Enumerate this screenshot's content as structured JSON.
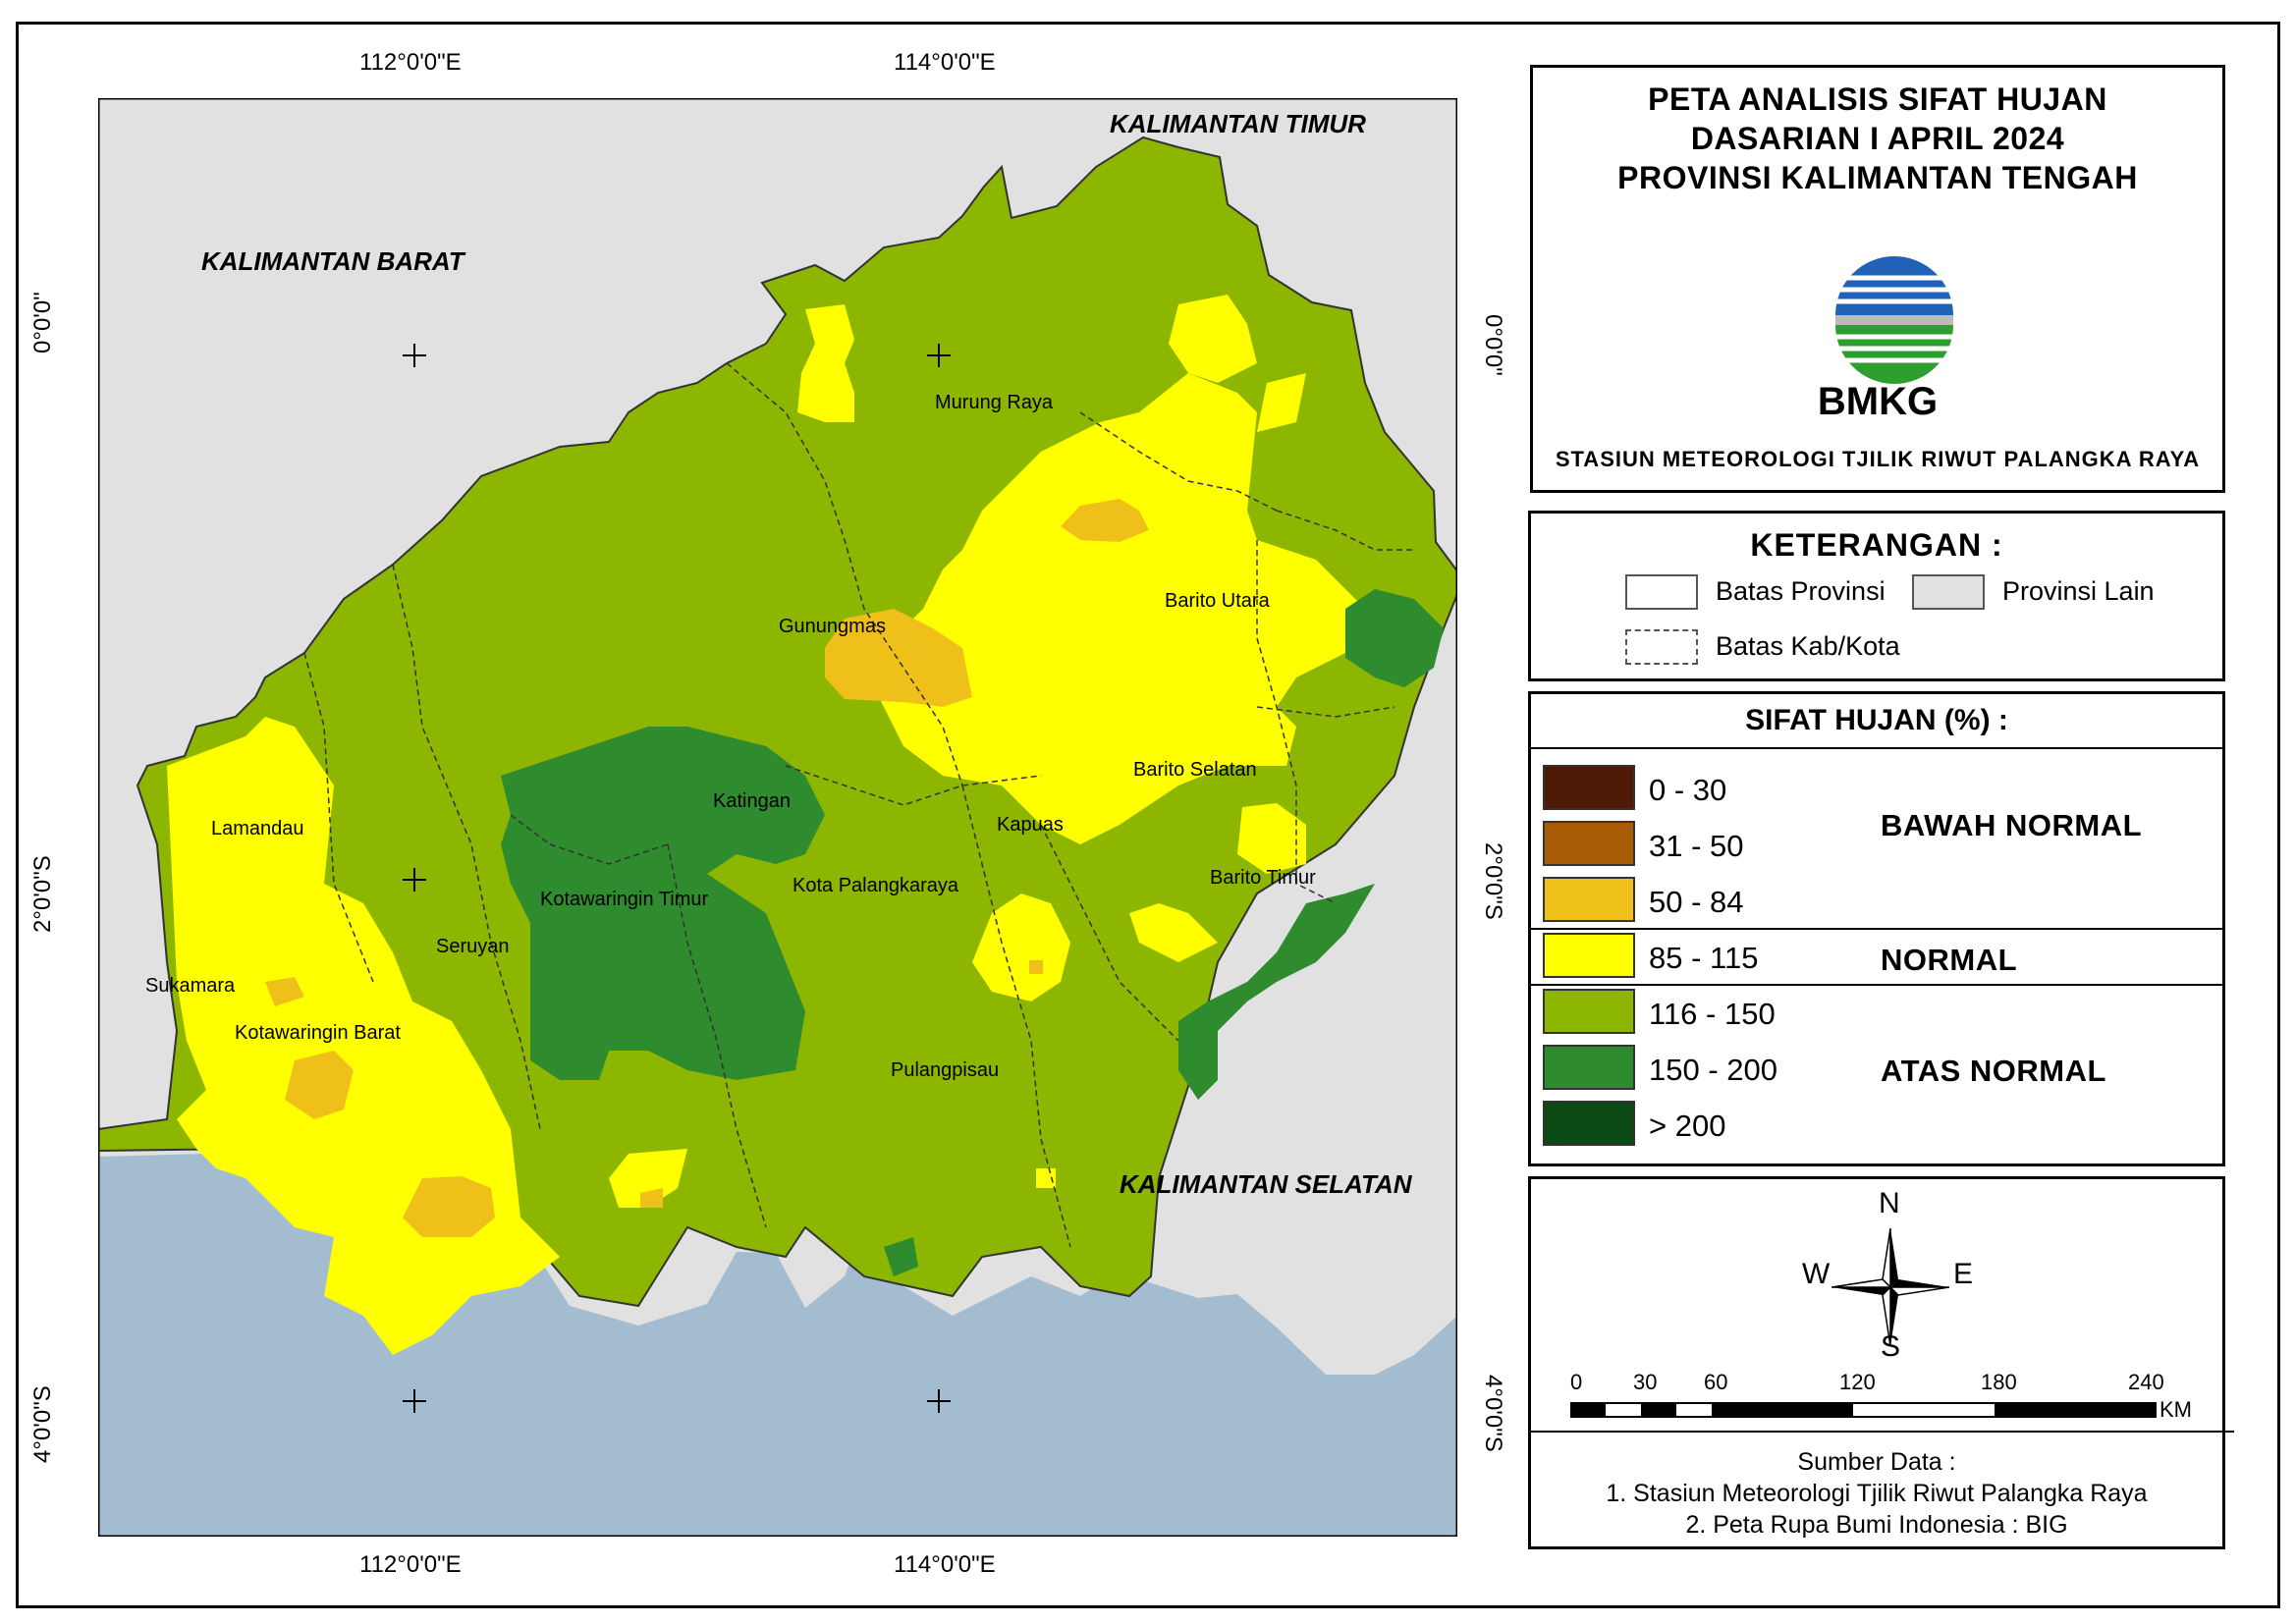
{
  "map": {
    "coordinate_labels": {
      "top": [
        "112°0'0\"E",
        "114°0'0\"E"
      ],
      "bottom": [
        "112°0'0\"E",
        "114°0'0\"E"
      ],
      "left": [
        "0°0'0\"",
        "2°0'0\"S",
        "4°0'0\"S"
      ],
      "right": [
        "0°0'0\"",
        "2°0'0\"S",
        "4°0'0\"S"
      ]
    },
    "neighbor_provinces": [
      "KALIMANTAN TIMUR",
      "KALIMANTAN BARAT",
      "KALIMANTAN SELATAN"
    ],
    "regencies": [
      "Murung Raya",
      "Gunungmas",
      "Barito Utara",
      "Barito Selatan",
      "Katingan",
      "Kapuas",
      "Barito Timur",
      "Lamandau",
      "Kota Palangkaraya",
      "Kotawaringin Timur",
      "Seruyan",
      "Sukamara",
      "Kotawaringin Barat",
      "Pulangpisau"
    ],
    "colors": {
      "sea": "#a3bcd0",
      "other_province": "#e1e1e1",
      "c_0_30": "#4e1a06",
      "c_31_50": "#a85a05",
      "c_50_84": "#efc01a",
      "c_85_115": "#ffff00",
      "c_116_150": "#8db600",
      "c_150_200": "#2e8b2e",
      "c_gt_200": "#0b4a14"
    }
  },
  "title": {
    "line1": "PETA ANALISIS SIFAT HUJAN",
    "line2": "DASARIAN I APRIL 2024",
    "line3": "PROVINSI KALIMANTAN TENGAH",
    "logo_text": "BMKG",
    "station": "STASIUN METEOROLOGI TJILIK RIWUT PALANGKA RAYA"
  },
  "keterangan": {
    "title": "KETERANGAN :",
    "items": [
      "Batas Provinsi",
      "Provinsi Lain",
      "Batas Kab/Kota"
    ]
  },
  "sifat_hujan": {
    "title": "SIFAT HUJAN (%) :",
    "classes": [
      "0 - 30",
      "31 - 50",
      "50 - 84",
      "85 - 115",
      "116 - 150",
      "150 - 200",
      "> 200"
    ],
    "categories": [
      "BAWAH NORMAL",
      "NORMAL",
      "ATAS NORMAL"
    ]
  },
  "compass": {
    "n": "N",
    "s": "S",
    "e": "E",
    "w": "W"
  },
  "scale": {
    "ticks": [
      "0",
      "30",
      "60",
      "120",
      "180",
      "240"
    ],
    "unit": "KM"
  },
  "source": {
    "title": "Sumber Data :",
    "items": [
      "1. Stasiun Meteorologi Tjilik Riwut Palangka Raya",
      "2. Peta Rupa Bumi Indonesia : BIG"
    ]
  }
}
